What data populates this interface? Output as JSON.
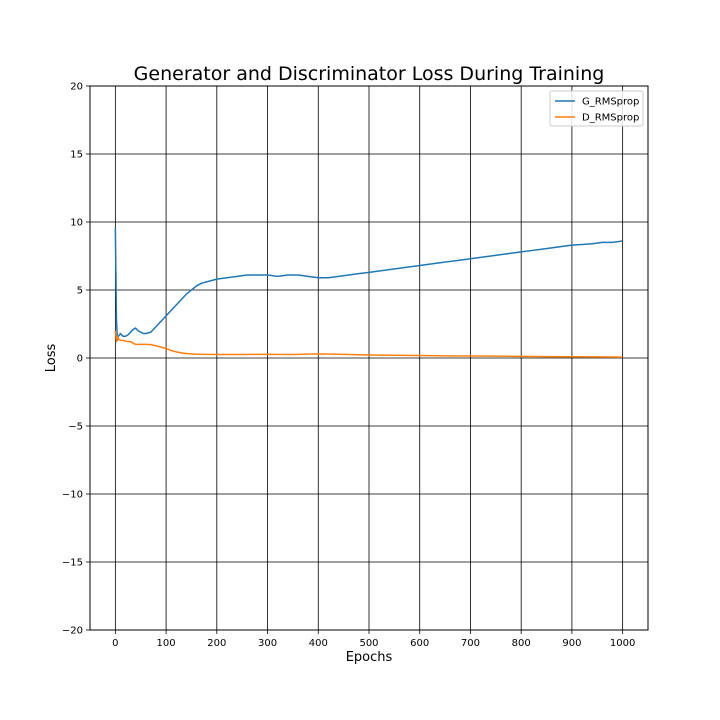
{
  "chart_data": {
    "type": "line",
    "title": "Generator and Discriminator Loss During Training",
    "xlabel": "Epochs",
    "ylabel": "Loss",
    "xlim": [
      -50,
      1050
    ],
    "ylim": [
      -20,
      20
    ],
    "xticks": [
      0,
      100,
      200,
      300,
      400,
      500,
      600,
      700,
      800,
      900,
      1000
    ],
    "yticks": [
      -20,
      -15,
      -10,
      -5,
      0,
      5,
      10,
      15,
      20
    ],
    "ytick_labels": [
      "−20",
      "−15",
      "−10",
      "−5",
      "0",
      "5",
      "10",
      "15",
      "20"
    ],
    "grid": true,
    "legend_position": "top-right",
    "series": [
      {
        "name": "G_RMSprop",
        "color": "#1f77b4",
        "x": [
          0,
          2,
          4,
          6,
          10,
          15,
          20,
          25,
          30,
          35,
          40,
          45,
          50,
          55,
          60,
          70,
          80,
          90,
          100,
          110,
          120,
          130,
          140,
          150,
          160,
          170,
          180,
          190,
          200,
          220,
          240,
          260,
          280,
          300,
          320,
          340,
          360,
          380,
          400,
          420,
          440,
          460,
          480,
          500,
          520,
          540,
          560,
          580,
          600,
          620,
          640,
          660,
          680,
          700,
          720,
          740,
          760,
          780,
          800,
          820,
          840,
          860,
          880,
          900,
          920,
          940,
          960,
          980,
          1000
        ],
        "y": [
          9.6,
          3.0,
          1.3,
          1.6,
          1.8,
          1.6,
          1.6,
          1.7,
          1.9,
          2.1,
          2.2,
          2.0,
          1.9,
          1.8,
          1.8,
          1.9,
          2.3,
          2.7,
          3.1,
          3.5,
          3.9,
          4.3,
          4.7,
          5.0,
          5.3,
          5.5,
          5.6,
          5.7,
          5.8,
          5.9,
          6.0,
          6.1,
          6.1,
          6.1,
          6.0,
          6.1,
          6.1,
          6.0,
          5.9,
          5.9,
          6.0,
          6.1,
          6.2,
          6.3,
          6.4,
          6.5,
          6.6,
          6.7,
          6.8,
          6.9,
          7.0,
          7.1,
          7.2,
          7.3,
          7.4,
          7.5,
          7.6,
          7.7,
          7.8,
          7.9,
          8.0,
          8.1,
          8.2,
          8.3,
          8.35,
          8.4,
          8.5,
          8.5,
          8.6
        ]
      },
      {
        "name": "D_RMSprop",
        "color": "#ff7f0e",
        "x": [
          0,
          2,
          4,
          6,
          10,
          15,
          20,
          25,
          30,
          35,
          40,
          50,
          60,
          70,
          80,
          90,
          100,
          110,
          120,
          130,
          140,
          150,
          160,
          180,
          200,
          250,
          300,
          350,
          400,
          450,
          500,
          550,
          600,
          650,
          700,
          750,
          800,
          850,
          900,
          950,
          1000
        ],
        "y": [
          2.0,
          1.2,
          1.6,
          1.4,
          1.3,
          1.3,
          1.25,
          1.2,
          1.2,
          1.1,
          1.0,
          1.0,
          1.0,
          0.98,
          0.9,
          0.8,
          0.7,
          0.55,
          0.45,
          0.38,
          0.33,
          0.3,
          0.28,
          0.27,
          0.26,
          0.26,
          0.27,
          0.26,
          0.3,
          0.27,
          0.22,
          0.2,
          0.18,
          0.16,
          0.15,
          0.14,
          0.12,
          0.1,
          0.09,
          0.08,
          0.06
        ]
      }
    ]
  }
}
